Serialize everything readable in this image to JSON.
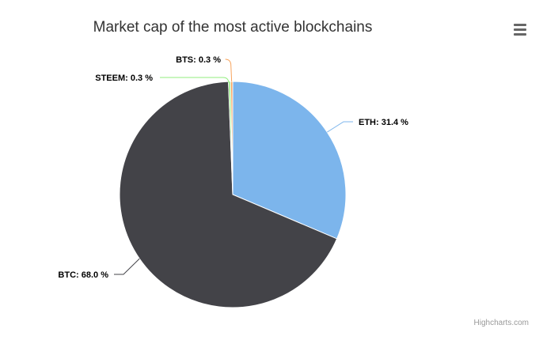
{
  "chart_data": {
    "type": "pie",
    "title": "Market cap of the most active blockchains",
    "series": [
      {
        "data": [
          {
            "name": "ETH",
            "value": 31.4,
            "label": "ETH: 31.4 %",
            "color": "#7cb5ec"
          },
          {
            "name": "BTC",
            "value": 68.0,
            "label": "BTC: 68.0 %",
            "color": "#434348"
          },
          {
            "name": "STEEM",
            "value": 0.3,
            "label": "STEEM: 0.3 %",
            "color": "#90ed7d"
          },
          {
            "name": "BTS",
            "value": 0.3,
            "label": "BTS: 0.3 %",
            "color": "#f7a35c"
          }
        ]
      }
    ]
  },
  "menu": {
    "icon": "hamburger-icon"
  },
  "credits": "Highcharts.com"
}
